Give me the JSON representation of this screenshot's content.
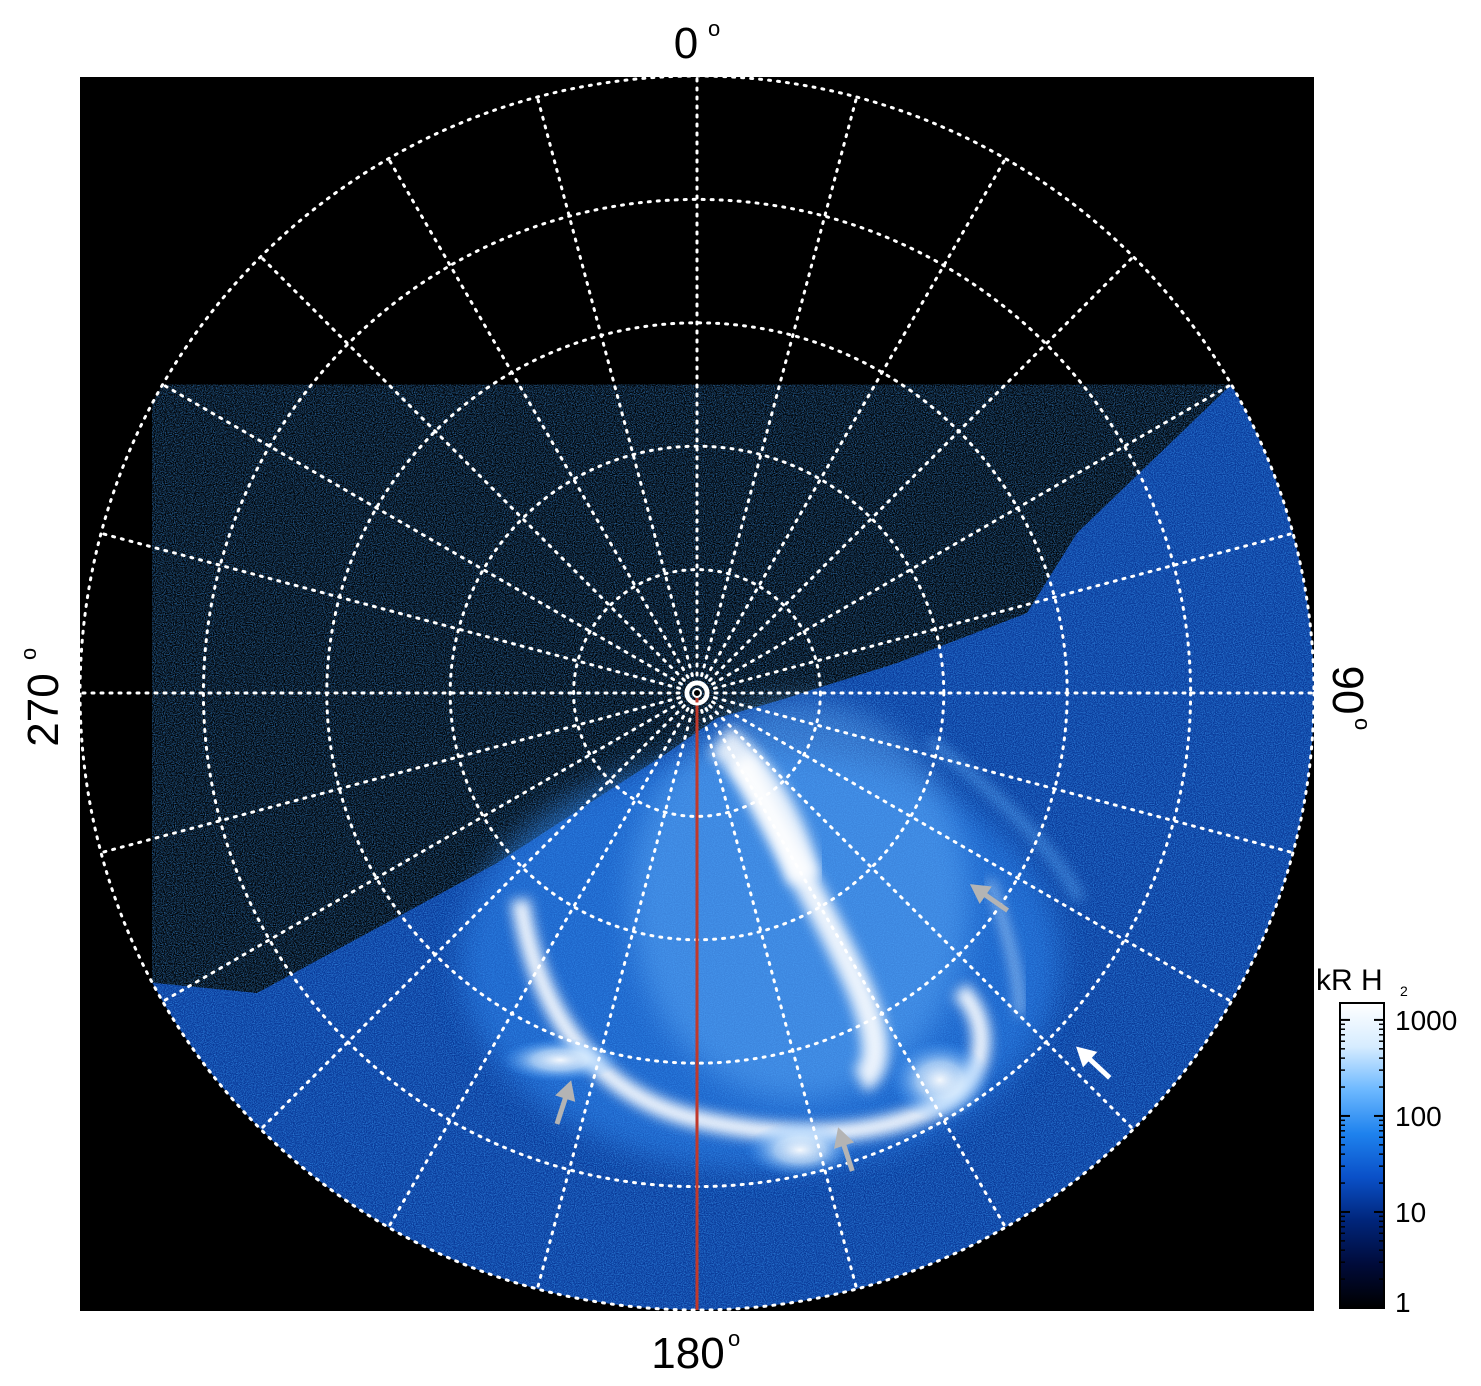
{
  "chart_data": {
    "type": "heatmap",
    "projection": "polar",
    "center_label": "",
    "longitude_labels": {
      "top": "0",
      "right": "90",
      "bottom": "180",
      "left": "270",
      "unit_symbol": "o"
    },
    "grid": {
      "style": "dotted",
      "color": "#ffffff",
      "radial_spokes_deg": [
        0,
        15,
        30,
        45,
        60,
        75,
        90,
        105,
        120,
        135,
        150,
        165,
        180,
        195,
        210,
        225,
        240,
        255,
        270,
        285,
        300,
        315,
        330,
        345
      ],
      "rings_colatitude_deg": [
        10,
        20,
        30,
        40,
        50
      ]
    },
    "reference_meridian_deg": 180,
    "reference_meridian_color": "#c0392b",
    "colorbar": {
      "title": "kR H",
      "title_subscript": "2",
      "scale": "log",
      "ticks": [
        {
          "value": 1,
          "label": "1"
        },
        {
          "value": 10,
          "label": "10"
        },
        {
          "value": 100,
          "label": "100"
        },
        {
          "value": 1000,
          "label": "1000"
        }
      ],
      "range": [
        1,
        1500
      ],
      "colors": [
        "#000000",
        "#000b3a",
        "#00257a",
        "#0a50c8",
        "#1e82ee",
        "#6cb8ff",
        "#d6ecff",
        "#ffffff"
      ]
    },
    "annotations": [
      {
        "type": "arrow",
        "color": "#b4b4b4",
        "lon_deg": 125,
        "colat_deg": 27
      },
      {
        "type": "arrow",
        "color": "#ffffff",
        "lon_deg": 133,
        "colat_deg": 42
      },
      {
        "type": "arrow",
        "color": "#b4b4b4",
        "lon_deg": 162,
        "colat_deg": 37
      },
      {
        "type": "arrow",
        "color": "#b4b4b4",
        "lon_deg": 198,
        "colat_deg": 33
      }
    ]
  }
}
